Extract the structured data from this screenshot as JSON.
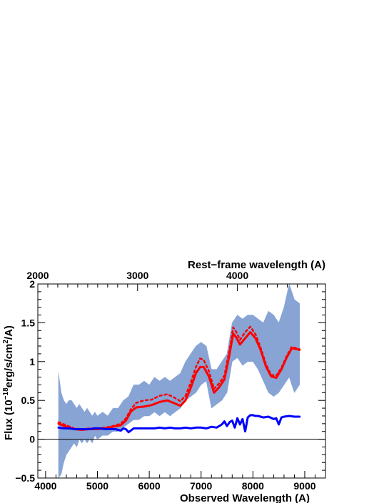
{
  "chart_data": {
    "type": "line",
    "title": "",
    "xlabel": "Observed Wavelength (A)",
    "ylabel_parts": {
      "prefix": "Flux (10",
      "exp1": "−18",
      "mid": "erg/s/cm",
      "exp2": "2",
      "suffix": "/A)"
    },
    "top_xlabel": "Rest−frame wavelength (A)",
    "xlim": [
      3850,
      9400
    ],
    "ylim": [
      -0.5,
      2.0
    ],
    "x_ticks": [
      4000,
      5000,
      6000,
      7000,
      8000,
      9000
    ],
    "y_ticks": [
      {
        "value": -0.5,
        "label": "−0.5"
      },
      {
        "value": 0,
        "label": "0"
      },
      {
        "value": 0.5,
        "label": "0.5"
      },
      {
        "value": 1.0,
        "label": "1"
      },
      {
        "value": 1.5,
        "label": "1.5"
      },
      {
        "value": 2.0,
        "label": "2"
      }
    ],
    "top_ticks": [
      {
        "value": 2000,
        "label": "2000",
        "observed": 3850
      },
      {
        "value": 3000,
        "label": "3000",
        "observed": 5775
      },
      {
        "value": 4000,
        "label": "4000",
        "observed": 7700
      }
    ],
    "zero_line": true,
    "grid": false,
    "legend": "none",
    "series": [
      {
        "style": "band",
        "color": "#7b9bd1",
        "x": [
          4250,
          4300,
          4350,
          4400,
          4450,
          4500,
          4550,
          4600,
          4650,
          4700,
          4750,
          4800,
          4850,
          4900,
          4950,
          5000,
          5100,
          5200,
          5300,
          5400,
          5500,
          5600,
          5700,
          5800,
          5900,
          6000,
          6100,
          6200,
          6300,
          6400,
          6500,
          6600,
          6700,
          6800,
          6900,
          7000,
          7100,
          7200,
          7300,
          7400,
          7500,
          7600,
          7700,
          7800,
          7900,
          8000,
          8100,
          8200,
          8300,
          8400,
          8500,
          8600,
          8700,
          8800,
          8900
        ],
        "y_low": [
          -0.5,
          -0.45,
          -0.3,
          -0.2,
          -0.15,
          -0.1,
          -0.05,
          -0.1,
          0.0,
          -0.05,
          0.0,
          -0.05,
          0.0,
          -0.05,
          0.05,
          0.0,
          0.05,
          0.05,
          0.1,
          0.1,
          0.15,
          0.2,
          0.25,
          0.25,
          0.3,
          0.3,
          0.35,
          0.3,
          0.35,
          0.3,
          0.35,
          0.4,
          0.5,
          0.55,
          0.6,
          0.7,
          0.75,
          0.4,
          0.45,
          0.5,
          0.6,
          1.0,
          1.05,
          0.95,
          1.0,
          1.0,
          0.9,
          0.75,
          0.6,
          0.55,
          0.6,
          0.7,
          0.8,
          0.6,
          0.7
        ],
        "y_high": [
          0.85,
          0.6,
          0.5,
          0.45,
          0.5,
          0.5,
          0.45,
          0.4,
          0.45,
          0.4,
          0.35,
          0.4,
          0.35,
          0.3,
          0.35,
          0.3,
          0.35,
          0.3,
          0.4,
          0.4,
          0.5,
          0.55,
          0.7,
          0.7,
          0.75,
          0.7,
          0.8,
          0.75,
          0.8,
          0.75,
          0.8,
          0.85,
          1.0,
          1.1,
          1.2,
          1.25,
          1.2,
          0.9,
          0.9,
          1.0,
          1.1,
          1.5,
          1.6,
          1.55,
          1.6,
          1.6,
          1.55,
          1.5,
          1.65,
          1.6,
          1.5,
          1.7,
          2.0,
          1.8,
          1.75
        ]
      },
      {
        "style": "dotted",
        "color": "#ff0000",
        "x": [
          4250,
          4400,
          4550,
          4700,
          4850,
          5000,
          5150,
          5300,
          5450,
          5550,
          5650,
          5750,
          5900,
          6050,
          6200,
          6350,
          6500,
          6600,
          6700,
          6800,
          6900,
          6980,
          7050,
          7150,
          7250,
          7350,
          7450,
          7550,
          7620,
          7680,
          7750,
          7850,
          7950,
          8050,
          8150,
          8250,
          8350,
          8450,
          8550,
          8650,
          8750,
          8850,
          8900
        ],
        "y": [
          0.22,
          0.18,
          0.14,
          0.13,
          0.14,
          0.14,
          0.15,
          0.17,
          0.2,
          0.27,
          0.39,
          0.47,
          0.5,
          0.51,
          0.56,
          0.58,
          0.53,
          0.49,
          0.56,
          0.73,
          0.93,
          1.04,
          1.02,
          0.88,
          0.65,
          0.72,
          0.82,
          1.16,
          1.44,
          1.38,
          1.28,
          1.38,
          1.45,
          1.35,
          1.18,
          0.97,
          0.83,
          0.82,
          0.92,
          1.07,
          1.19,
          1.17,
          1.16
        ]
      },
      {
        "style": "solid",
        "color": "#ff0000",
        "x": [
          4250,
          4400,
          4550,
          4700,
          4850,
          5000,
          5150,
          5300,
          5450,
          5550,
          5650,
          5750,
          5900,
          6050,
          6200,
          6350,
          6500,
          6600,
          6700,
          6800,
          6900,
          6980,
          7050,
          7150,
          7250,
          7350,
          7450,
          7550,
          7620,
          7680,
          7750,
          7850,
          7950,
          8050,
          8150,
          8250,
          8350,
          8450,
          8550,
          8650,
          8750,
          8850,
          8900
        ],
        "y": [
          0.2,
          0.16,
          0.13,
          0.12,
          0.13,
          0.13,
          0.14,
          0.16,
          0.18,
          0.24,
          0.36,
          0.41,
          0.42,
          0.44,
          0.48,
          0.5,
          0.46,
          0.43,
          0.5,
          0.66,
          0.85,
          0.93,
          0.93,
          0.81,
          0.6,
          0.67,
          0.77,
          1.1,
          1.36,
          1.31,
          1.22,
          1.3,
          1.38,
          1.3,
          1.15,
          0.94,
          0.81,
          0.79,
          0.9,
          1.05,
          1.17,
          1.16,
          1.15
        ]
      },
      {
        "style": "solid",
        "color": "#0000ff",
        "x": [
          4250,
          4350,
          4450,
          4550,
          4650,
          4750,
          4850,
          4950,
          5050,
          5150,
          5250,
          5350,
          5450,
          5500,
          5550,
          5600,
          5700,
          5800,
          5900,
          6000,
          6100,
          6200,
          6300,
          6400,
          6500,
          6600,
          6700,
          6800,
          6900,
          7000,
          7100,
          7200,
          7300,
          7400,
          7450,
          7500,
          7550,
          7600,
          7650,
          7700,
          7750,
          7800,
          7850,
          7900,
          7950,
          8000,
          8050,
          8100,
          8200,
          8300,
          8400,
          8450,
          8500,
          8550,
          8600,
          8700,
          8800,
          8900
        ],
        "y": [
          0.15,
          0.14,
          0.14,
          0.13,
          0.13,
          0.13,
          0.13,
          0.14,
          0.14,
          0.13,
          0.13,
          0.13,
          0.11,
          0.14,
          0.13,
          0.09,
          0.14,
          0.14,
          0.14,
          0.14,
          0.14,
          0.15,
          0.14,
          0.15,
          0.14,
          0.14,
          0.15,
          0.14,
          0.15,
          0.15,
          0.14,
          0.16,
          0.15,
          0.19,
          0.23,
          0.17,
          0.22,
          0.24,
          0.15,
          0.27,
          0.19,
          0.26,
          0.1,
          0.28,
          0.31,
          0.31,
          0.3,
          0.3,
          0.28,
          0.29,
          0.26,
          0.27,
          0.19,
          0.28,
          0.29,
          0.3,
          0.29,
          0.29
        ]
      }
    ]
  }
}
